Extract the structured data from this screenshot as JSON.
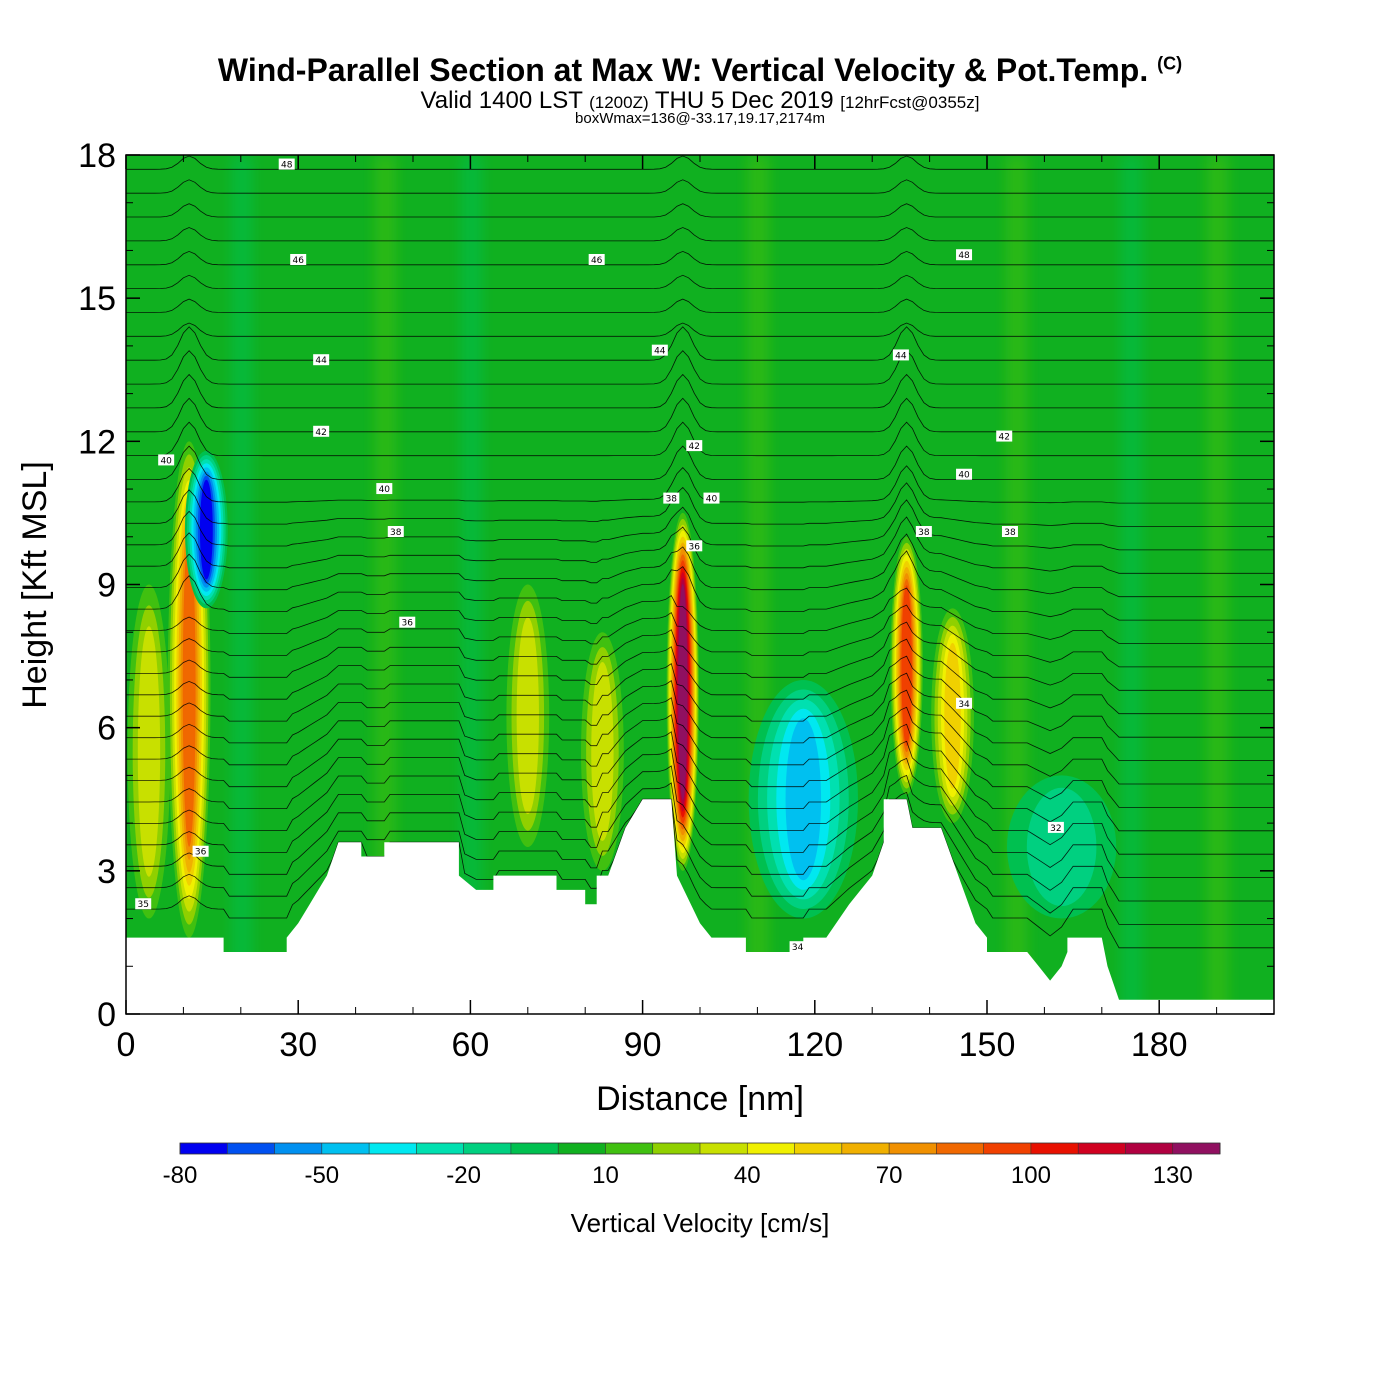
{
  "chart_data": {
    "type": "heatmap",
    "title": "Wind-Parallel Section at Max W: Vertical Velocity & Pot.Temp.",
    "title_mark": "(C)",
    "subtitle_main": "Valid 1400 LST",
    "subtitle_utc": "(1200Z)",
    "subtitle_date": "THU 5 Dec 2019",
    "subtitle_fcst": "[12hrFcst@0355z]",
    "box_info": "boxWmax=136@-33.17,19.17,2174m",
    "xlabel": "Distance [nm]",
    "ylabel": "Height [Kft MSL]",
    "xlim": [
      0,
      200
    ],
    "ylim": [
      0,
      18
    ],
    "x_ticks": [
      0,
      30,
      60,
      90,
      120,
      150,
      180
    ],
    "y_ticks": [
      0,
      3,
      6,
      9,
      12,
      15,
      18
    ],
    "colorbar": {
      "label": "Vertical Velocity [cm/s]",
      "levels": [
        -80,
        -70,
        -60,
        -50,
        -40,
        -30,
        -20,
        -10,
        0,
        10,
        20,
        30,
        40,
        50,
        60,
        70,
        80,
        90,
        100,
        110,
        120,
        130,
        140
      ],
      "colors": [
        "#0000f0",
        "#0050f0",
        "#0090f0",
        "#00c0f0",
        "#00e8f0",
        "#00e0b0",
        "#00d080",
        "#00c050",
        "#10b020",
        "#40c010",
        "#90d000",
        "#c8e000",
        "#f0f000",
        "#f0d000",
        "#f0b000",
        "#f09000",
        "#f06800",
        "#f04000",
        "#e81000",
        "#d00020",
        "#b00040",
        "#901060"
      ],
      "tick_labels": [
        "-80",
        "-50",
        "-20",
        "10",
        "40",
        "70",
        "100",
        "130"
      ]
    },
    "updrafts": [
      {
        "x": 11,
        "y_range": [
          1.6,
          12
        ],
        "peak_w": 80
      },
      {
        "x": 4,
        "y_range": [
          2,
          9
        ],
        "peak_w": 35
      },
      {
        "x": 97,
        "y_range": [
          3,
          10.5
        ],
        "peak_w": 136
      },
      {
        "x": 136,
        "y_range": [
          4.6,
          10
        ],
        "peak_w": 95
      },
      {
        "x": 144,
        "y_range": [
          4,
          8.5
        ],
        "peak_w": 55
      },
      {
        "x": 70,
        "y_range": [
          3.5,
          9
        ],
        "peak_w": 35
      },
      {
        "x": 83,
        "y_range": [
          3,
          8
        ],
        "peak_w": 30
      }
    ],
    "downdrafts": [
      {
        "x": 14,
        "y_range": [
          8.5,
          11.8
        ],
        "peak_w": -70
      },
      {
        "x": 118,
        "y_range": [
          2,
          7
        ],
        "peak_w": -45
      },
      {
        "x": 163,
        "y_range": [
          2,
          5
        ],
        "peak_w": -15
      }
    ],
    "terrain_heights_kft": [
      [
        0,
        1.6
      ],
      [
        17,
        1.6
      ],
      [
        17,
        1.3
      ],
      [
        28,
        1.3
      ],
      [
        28,
        1.6
      ],
      [
        30,
        1.9
      ],
      [
        32,
        2.3
      ],
      [
        35,
        2.9
      ],
      [
        37,
        3.6
      ],
      [
        41,
        3.6
      ],
      [
        41,
        3.3
      ],
      [
        45,
        3.3
      ],
      [
        45,
        3.6
      ],
      [
        58,
        3.6
      ],
      [
        58,
        2.9
      ],
      [
        61,
        2.6
      ],
      [
        64,
        2.6
      ],
      [
        64,
        2.9
      ],
      [
        75,
        2.9
      ],
      [
        75,
        2.6
      ],
      [
        80,
        2.6
      ],
      [
        80,
        2.3
      ],
      [
        82,
        2.3
      ],
      [
        82,
        2.9
      ],
      [
        84,
        2.9
      ],
      [
        87,
        3.9
      ],
      [
        90,
        4.5
      ],
      [
        95,
        4.5
      ],
      [
        96,
        2.9
      ],
      [
        100,
        1.9
      ],
      [
        102,
        1.6
      ],
      [
        108,
        1.6
      ],
      [
        108,
        1.3
      ],
      [
        118,
        1.3
      ],
      [
        118,
        1.6
      ],
      [
        122,
        1.6
      ],
      [
        126,
        2.3
      ],
      [
        130,
        2.9
      ],
      [
        132,
        3.6
      ],
      [
        132,
        4.5
      ],
      [
        136,
        4.5
      ],
      [
        137,
        3.9
      ],
      [
        142,
        3.9
      ],
      [
        145,
        2.9
      ],
      [
        148,
        1.9
      ],
      [
        150,
        1.6
      ],
      [
        150,
        1.3
      ],
      [
        157,
        1.3
      ],
      [
        159,
        1.0
      ],
      [
        161,
        0.7
      ],
      [
        163,
        1.0
      ],
      [
        164,
        1.3
      ],
      [
        164,
        1.6
      ],
      [
        170,
        1.6
      ],
      [
        171,
        1.0
      ],
      [
        173,
        0.3
      ],
      [
        200,
        0.3
      ]
    ],
    "theta_contours_K": [
      32,
      34,
      36,
      38,
      40,
      42,
      44,
      46,
      48
    ],
    "theta_labels": [
      {
        "text": "48",
        "x": 28,
        "y": 17.8
      },
      {
        "text": "46",
        "x": 30,
        "y": 15.8
      },
      {
        "text": "46",
        "x": 82,
        "y": 15.8
      },
      {
        "text": "48",
        "x": 146,
        "y": 15.9
      },
      {
        "text": "44",
        "x": 34,
        "y": 13.7
      },
      {
        "text": "44",
        "x": 93,
        "y": 13.9
      },
      {
        "text": "44",
        "x": 135,
        "y": 13.8
      },
      {
        "text": "42",
        "x": 34,
        "y": 12.2
      },
      {
        "text": "42",
        "x": 99,
        "y": 11.9
      },
      {
        "text": "42",
        "x": 153,
        "y": 12.1
      },
      {
        "text": "40",
        "x": 7,
        "y": 11.6
      },
      {
        "text": "40",
        "x": 45,
        "y": 11.0
      },
      {
        "text": "40",
        "x": 102,
        "y": 10.8
      },
      {
        "text": "40",
        "x": 146,
        "y": 11.3
      },
      {
        "text": "38",
        "x": 95,
        "y": 10.8
      },
      {
        "text": "38",
        "x": 47,
        "y": 10.1
      },
      {
        "text": "38",
        "x": 139,
        "y": 10.1
      },
      {
        "text": "38",
        "x": 154,
        "y": 10.1
      },
      {
        "text": "36",
        "x": 99,
        "y": 9.8
      },
      {
        "text": "36",
        "x": 49,
        "y": 8.2
      },
      {
        "text": "36",
        "x": 13,
        "y": 3.4
      },
      {
        "text": "34",
        "x": 146,
        "y": 6.5
      },
      {
        "text": "34",
        "x": 117,
        "y": 1.4
      },
      {
        "text": "35",
        "x": 3,
        "y": 2.3
      },
      {
        "text": "32",
        "x": 162,
        "y": 3.9
      }
    ]
  }
}
